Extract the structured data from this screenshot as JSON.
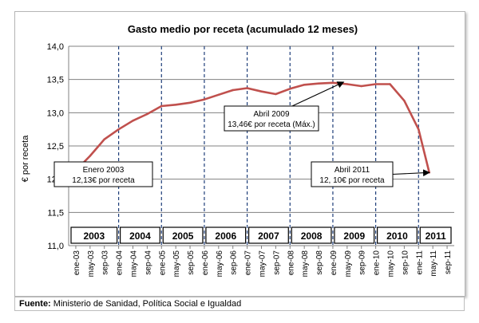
{
  "chart_data": {
    "type": "line",
    "title": "Gasto medio por receta  (acumulado 12 meses)",
    "ylabel": "€ por receta",
    "ylim": [
      11.0,
      14.0
    ],
    "yticks": [
      "11,0",
      "11,5",
      "12,0",
      "12,5",
      "13,0",
      "13,5",
      "14,0"
    ],
    "x_tick_labels": [
      "ene-03",
      "may-03",
      "sep-03",
      "ene-04",
      "may-04",
      "sep-04",
      "ene-05",
      "may-05",
      "sep-05",
      "ene-06",
      "may-06",
      "sep-06",
      "ene-07",
      "may-07",
      "sep-07",
      "ene-08",
      "may-08",
      "sep-08",
      "ene-09",
      "may-09",
      "sep-09",
      "ene-10",
      "may-10",
      "sep-10",
      "ene-11",
      "may-11",
      "sep-11"
    ],
    "years": [
      "2003",
      "2004",
      "2005",
      "2006",
      "2007",
      "2008",
      "2009",
      "2010",
      "2011"
    ],
    "series": [
      {
        "color": "#c0504d",
        "x": [
          "ene-03",
          "may-03",
          "sep-03",
          "ene-04",
          "may-04",
          "sep-04",
          "ene-05",
          "may-05",
          "sep-05",
          "ene-06",
          "may-06",
          "sep-06",
          "ene-07",
          "may-07",
          "sep-07",
          "ene-08",
          "may-08",
          "sep-08",
          "ene-09",
          "may-09",
          "sep-09",
          "ene-10",
          "may-10",
          "sep-10",
          "ene-11",
          "abr-11"
        ],
        "values": [
          12.13,
          12.35,
          12.6,
          12.75,
          12.88,
          12.98,
          13.1,
          13.12,
          13.15,
          13.2,
          13.27,
          13.34,
          13.37,
          13.32,
          13.28,
          13.36,
          13.42,
          13.44,
          13.45,
          13.43,
          13.4,
          13.43,
          13.43,
          13.18,
          12.75,
          12.1
        ]
      }
    ],
    "annotations": [
      {
        "line1": "Enero 2003",
        "line2": "12,13€ por receta",
        "x": "ene-03",
        "y": 12.13
      },
      {
        "line1": "Abril 2009",
        "line2": "13,46€ por receta (Máx.)",
        "x": "abr-09",
        "y": 13.46
      },
      {
        "line1": "Abril 2011",
        "line2": "12, 10€ por receta",
        "x": "abr-11",
        "y": 12.1
      }
    ],
    "grid": true,
    "colors": {
      "line": "#c0504d",
      "year_dividers": "#1f3f7a",
      "gridlines": "#808080"
    }
  },
  "footer": {
    "source_label": "Fuente:",
    "source_text": " Ministerio de Sanidad, Política Social e Igualdad"
  }
}
